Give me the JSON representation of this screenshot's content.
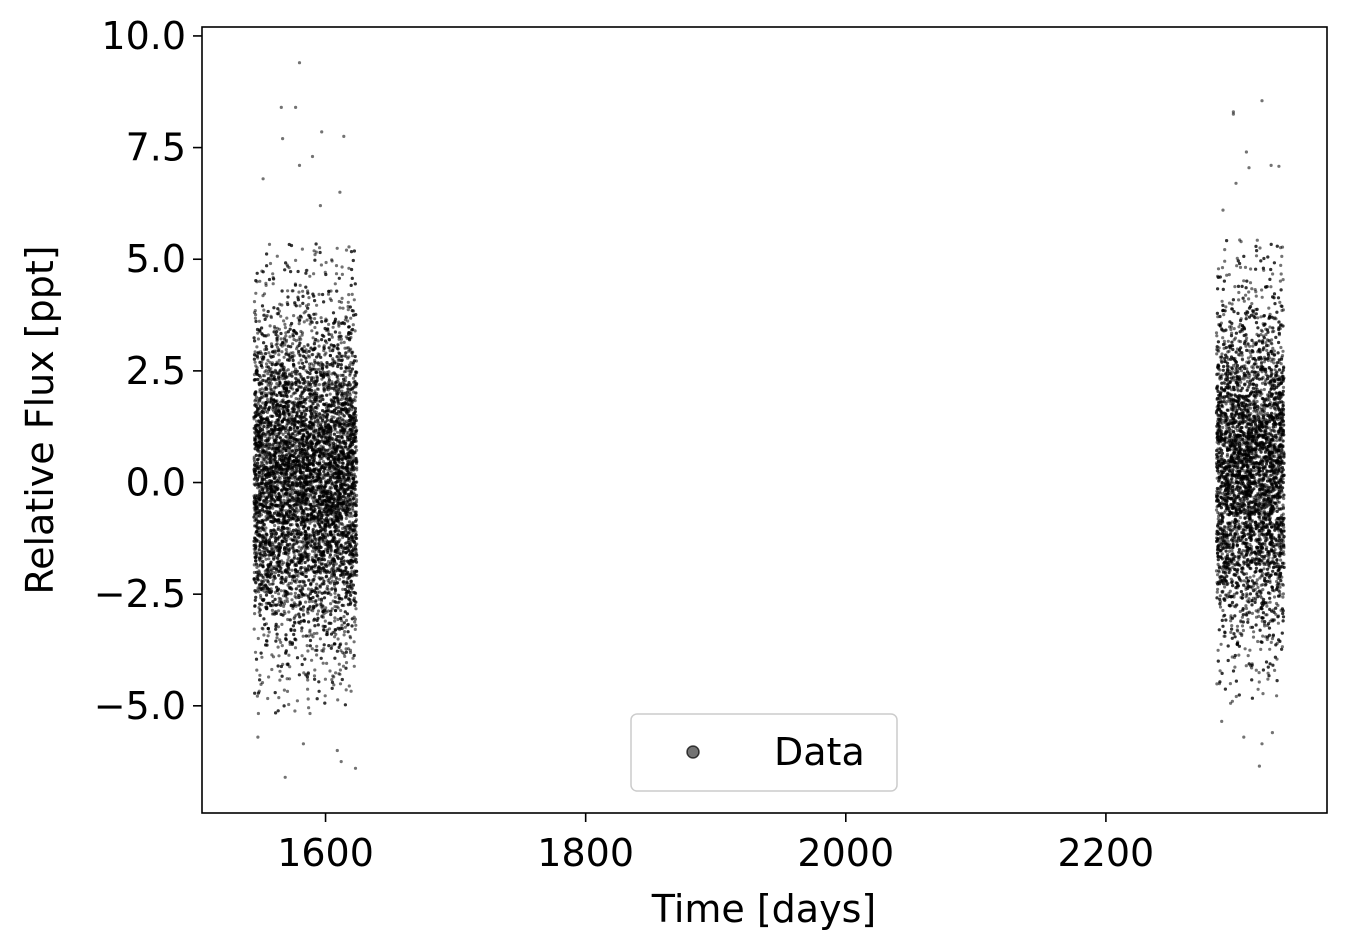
{
  "chart_data": {
    "type": "scatter",
    "title": "",
    "xlabel": "Time [days]",
    "ylabel": "Relative Flux [ppt]",
    "xlim": [
      1505,
      2370
    ],
    "ylim": [
      -7.4,
      10.2
    ],
    "xticks": [
      1600,
      1800,
      2000,
      2200
    ],
    "xtick_labels": [
      "1600",
      "1800",
      "2000",
      "2200"
    ],
    "yticks": [
      -5.0,
      -2.5,
      0.0,
      2.5,
      5.0,
      7.5,
      10.0
    ],
    "ytick_labels": [
      "−5.0",
      "−2.5",
      "0.0",
      "2.5",
      "5.0",
      "7.5",
      "10.0"
    ],
    "grid": false,
    "legend_position": "lower center",
    "series": [
      {
        "name": "Data",
        "color": "#000000",
        "marker": "circle",
        "alpha": 0.55,
        "segments": [
          {
            "x_range": [
              1545,
              1624
            ],
            "typical_spread": [
              -4.0,
              4.2
            ]
          },
          {
            "x_range": [
              2285,
              2337
            ],
            "typical_spread": [
              -3.8,
              4.3
            ]
          }
        ],
        "outliers": [
          {
            "x": 1580,
            "y": 9.4
          },
          {
            "x": 1566,
            "y": 8.4
          },
          {
            "x": 1577,
            "y": 8.4
          },
          {
            "x": 1597,
            "y": 7.85
          },
          {
            "x": 1614,
            "y": 7.75
          },
          {
            "x": 1567,
            "y": 7.7
          },
          {
            "x": 1590,
            "y": 7.3
          },
          {
            "x": 1580,
            "y": 7.1
          },
          {
            "x": 1552,
            "y": 6.8
          },
          {
            "x": 1611,
            "y": 6.5
          },
          {
            "x": 1596,
            "y": 6.2
          },
          {
            "x": 2320,
            "y": 8.55
          },
          {
            "x": 2298,
            "y": 8.3
          },
          {
            "x": 2298,
            "y": 8.25
          },
          {
            "x": 2308,
            "y": 7.4
          },
          {
            "x": 2327,
            "y": 7.1
          },
          {
            "x": 2333,
            "y": 7.08
          },
          {
            "x": 2310,
            "y": 7.05
          },
          {
            "x": 2300,
            "y": 6.7
          },
          {
            "x": 2290,
            "y": 6.1
          },
          {
            "x": 1569,
            "y": -6.6
          },
          {
            "x": 1612,
            "y": -6.25
          },
          {
            "x": 1623,
            "y": -6.4
          },
          {
            "x": 1548,
            "y": -5.7
          },
          {
            "x": 1583,
            "y": -5.85
          },
          {
            "x": 1609,
            "y": -6.0
          },
          {
            "x": 2318,
            "y": -6.35
          },
          {
            "x": 2306,
            "y": -5.7
          },
          {
            "x": 2320,
            "y": -5.85
          },
          {
            "x": 2328,
            "y": -5.6
          },
          {
            "x": 2289,
            "y": -5.35
          }
        ]
      }
    ],
    "legend": [
      {
        "label": "Data",
        "color": "#000000"
      }
    ]
  }
}
